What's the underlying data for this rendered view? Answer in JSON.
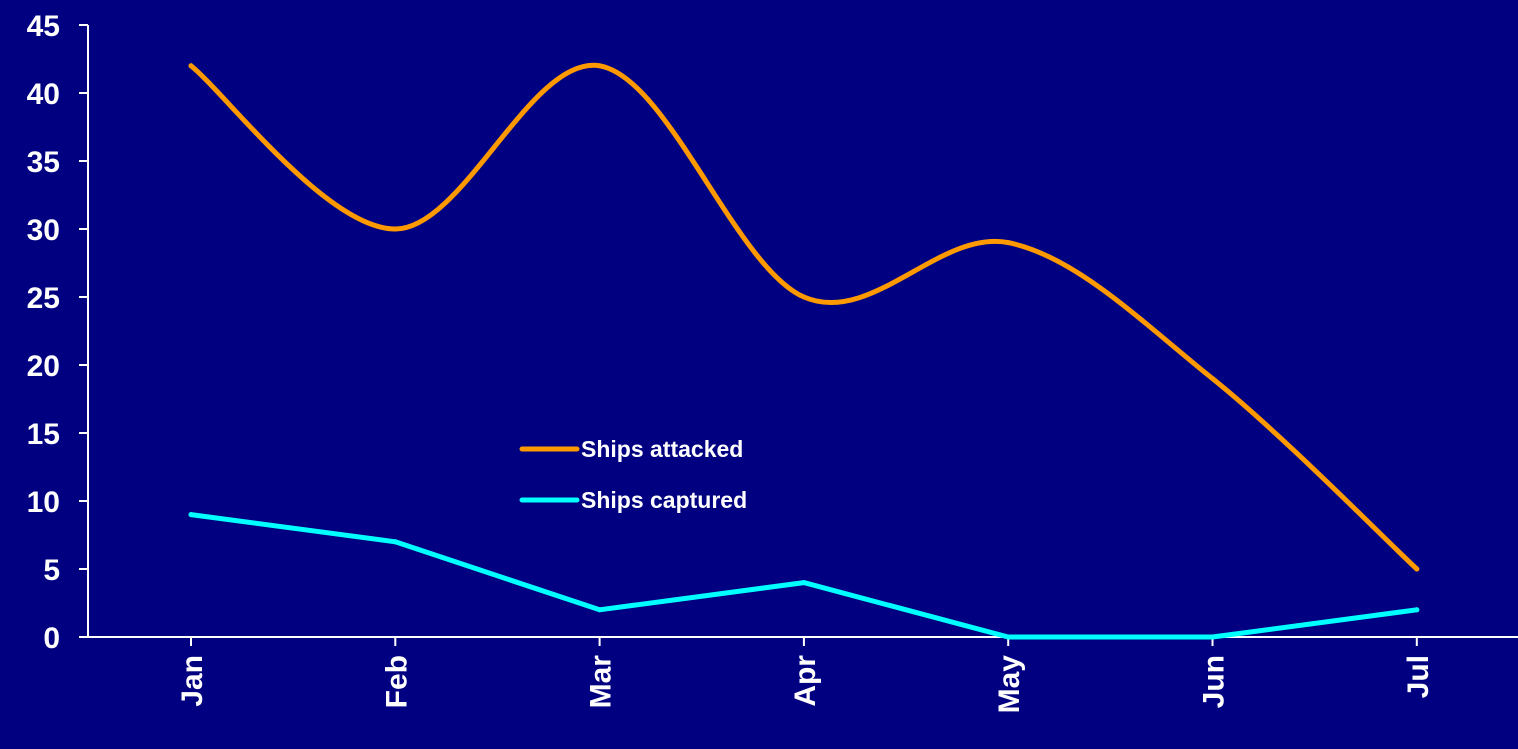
{
  "chart_data": {
    "type": "line",
    "categories": [
      "Jan",
      "Feb",
      "Mar",
      "Apr",
      "May",
      "Jun",
      "Jul"
    ],
    "series": [
      {
        "name": "Ships attacked",
        "values": [
          42,
          30,
          42,
          25,
          29,
          19,
          5
        ],
        "color": "#ff9900",
        "smooth": true
      },
      {
        "name": "Ships captured",
        "values": [
          9,
          7,
          2,
          4,
          0,
          0,
          2
        ],
        "color": "#00ffff",
        "smooth": false
      }
    ],
    "yticks": [
      "0",
      "5",
      "10",
      "15",
      "20",
      "25",
      "30",
      "35",
      "40",
      "45"
    ],
    "ylim": [
      0,
      45
    ],
    "grid": false,
    "legend_position": "center",
    "background": "#000080",
    "axis_color": "#ffffff"
  }
}
